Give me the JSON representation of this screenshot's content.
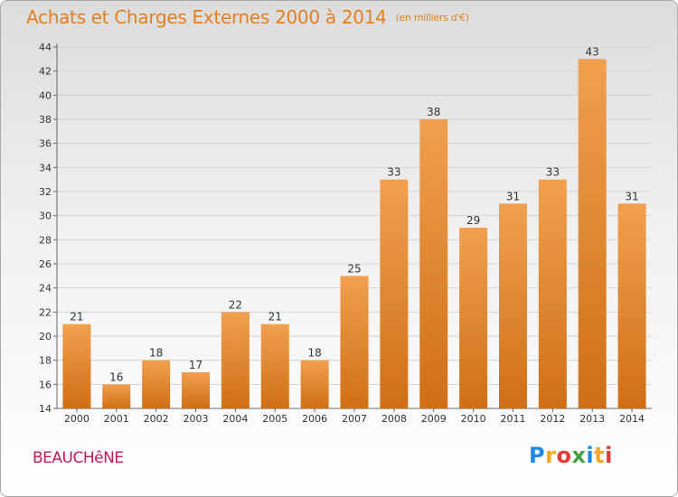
{
  "chart_data": {
    "type": "bar",
    "title": "Achats et Charges Externes 2000 à 2014",
    "subtitle": "(en milliers d'€)",
    "categories": [
      "2000",
      "2001",
      "2002",
      "2003",
      "2004",
      "2005",
      "2006",
      "2007",
      "2008",
      "2009",
      "2010",
      "2011",
      "2012",
      "2013",
      "2014"
    ],
    "values": [
      21,
      16,
      18,
      17,
      22,
      21,
      18,
      25,
      33,
      38,
      29,
      31,
      33,
      43,
      31
    ],
    "ylim": [
      14,
      44
    ],
    "yticks": [
      14,
      16,
      18,
      20,
      22,
      24,
      26,
      28,
      30,
      32,
      34,
      36,
      38,
      40,
      42,
      44
    ],
    "grid": true,
    "bar_color": "#f0a050",
    "bar_color_dark": "#cf6f15"
  },
  "place_name": "BEAUCHêNE",
  "logo": {
    "letters": [
      "P",
      "r",
      "o",
      "x",
      "i",
      "t",
      "i"
    ],
    "colors": [
      "#1e88e5",
      "#f5a623",
      "#e53935",
      "#43a047",
      "#1e88e5",
      "#f5a623",
      "#e53935"
    ]
  }
}
